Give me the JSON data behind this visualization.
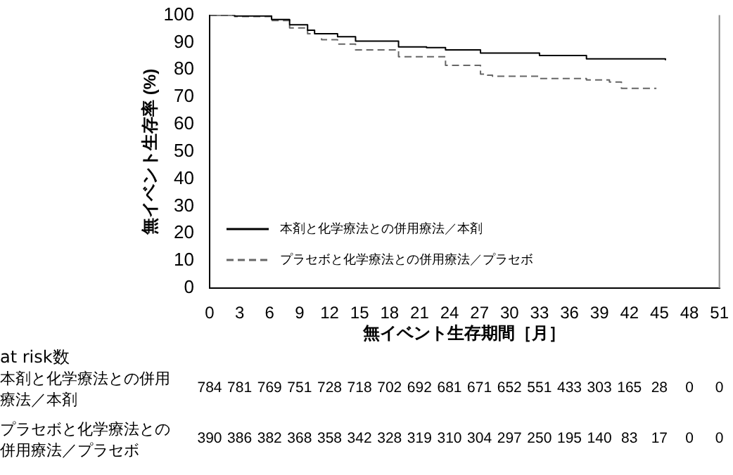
{
  "chart_data": {
    "type": "step",
    "xlabel": "無イベント生存期間［月］",
    "ylabel": "無イベント生存率 (%)",
    "xlim": [
      0,
      51
    ],
    "xticks": [
      0,
      3,
      6,
      9,
      12,
      15,
      18,
      21,
      24,
      27,
      30,
      33,
      36,
      39,
      42,
      45,
      48,
      51
    ],
    "ylim": [
      0,
      100
    ],
    "yticks": [
      0,
      10,
      20,
      30,
      40,
      50,
      60,
      70,
      80,
      90,
      100
    ],
    "grid": false,
    "legend": "bottom left",
    "marker": "none",
    "series": [
      {
        "name": "本剤と化学療法との併用療法／本剤",
        "color": "#000000",
        "line_style": "solid",
        "x": [
          0,
          2.5,
          6.2,
          8,
          9.8,
          10.5,
          12.8,
          14.6,
          18.9,
          21.7,
          23.6,
          27.1,
          33,
          37.7,
          45.6
        ],
        "values": [
          100,
          99.7,
          98.4,
          96.5,
          94.5,
          93.2,
          92.1,
          90.5,
          88.4,
          88.1,
          87.3,
          86.1,
          85.2,
          84,
          83.5
        ]
      },
      {
        "name": "プラセボと化学療法との併用療法／プラセボ",
        "color": "#666666",
        "line_style": "dashed",
        "x": [
          0,
          2.5,
          6.2,
          8,
          9.8,
          11.2,
          12.8,
          14.6,
          18.9,
          23.6,
          27.1,
          27.8,
          28.3,
          33,
          37.7,
          40,
          41.2,
          44.7
        ],
        "values": [
          100,
          99.5,
          98,
          95.3,
          93.2,
          91,
          89.4,
          87.3,
          84.8,
          81.6,
          78.4,
          78,
          77.6,
          76.8,
          76.3,
          75.5,
          73.2,
          73.2
        ]
      }
    ],
    "annotations": [
      "at risk数",
      "本剤と化学療法との併用療法／本剤",
      "784 781 769 751 728 718 702 692 681 671 652 551 433 303 165 28 0 0",
      "プラセボと化学療法との併用療法／プラセボ",
      "390 386 382 368 358 342 328 319 310 304 297 250 195 140 83 17 0 0"
    ]
  }
}
